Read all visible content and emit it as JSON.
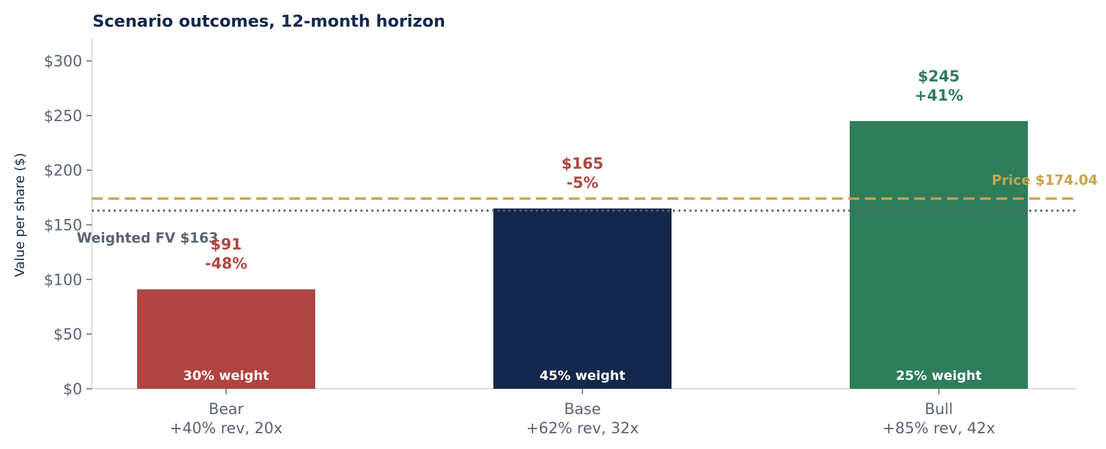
{
  "chart_data": {
    "type": "bar",
    "title": "Scenario outcomes, 12-month horizon",
    "ylabel": "Value per share ($)",
    "ylim": [
      0,
      320
    ],
    "yticks": [
      0,
      50,
      100,
      150,
      200,
      250,
      300
    ],
    "ytick_labels": [
      "$0",
      "$50",
      "$100",
      "$150",
      "$200",
      "$250",
      "$300"
    ],
    "categories": [
      {
        "line1": "Bear",
        "line2": "+40% rev, 20x"
      },
      {
        "line1": "Base",
        "line2": "+62% rev, 32x"
      },
      {
        "line1": "Bull",
        "line2": "+85% rev, 42x"
      }
    ],
    "values": [
      91,
      165,
      245
    ],
    "value_labels": [
      "$91",
      "$165",
      "$245"
    ],
    "change_labels": [
      "-48%",
      "-5%",
      "+41%"
    ],
    "weight_labels": [
      "30% weight",
      "45% weight",
      "25% weight"
    ],
    "bar_colors": [
      "#b04440",
      "#14284b",
      "#2e7d5b"
    ],
    "label_colors": [
      "#b04440",
      "#b04440",
      "#2e7d5b"
    ],
    "price_line": {
      "value": 174.04,
      "label": "Price $174.04",
      "color": "#c9a24a"
    },
    "weighted_fv_line": {
      "value": 163,
      "label": "Weighted FV $163",
      "color": "#5a6273"
    },
    "grid": false,
    "legend": "none"
  }
}
